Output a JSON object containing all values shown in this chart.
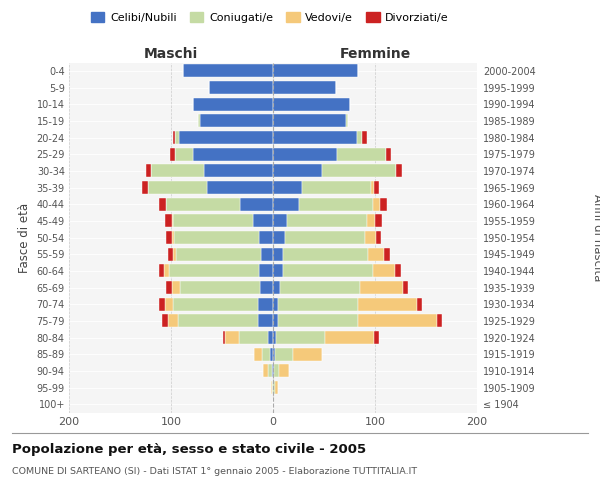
{
  "age_groups": [
    "100+",
    "95-99",
    "90-94",
    "85-89",
    "80-84",
    "75-79",
    "70-74",
    "65-69",
    "60-64",
    "55-59",
    "50-54",
    "45-49",
    "40-44",
    "35-39",
    "30-34",
    "25-29",
    "20-24",
    "15-19",
    "10-14",
    "5-9",
    "0-4"
  ],
  "birth_years": [
    "≤ 1904",
    "1905-1909",
    "1910-1914",
    "1915-1919",
    "1920-1924",
    "1925-1929",
    "1930-1934",
    "1935-1939",
    "1940-1944",
    "1945-1949",
    "1950-1954",
    "1955-1959",
    "1960-1964",
    "1965-1969",
    "1970-1974",
    "1975-1979",
    "1980-1984",
    "1985-1989",
    "1990-1994",
    "1995-1999",
    "2000-2004"
  ],
  "maschi_cel": [
    0,
    0,
    1,
    3,
    5,
    15,
    15,
    13,
    14,
    12,
    14,
    20,
    32,
    65,
    68,
    78,
    92,
    72,
    78,
    63,
    88
  ],
  "maschi_con": [
    0,
    1,
    4,
    8,
    28,
    78,
    83,
    78,
    88,
    83,
    83,
    78,
    73,
    58,
    52,
    18,
    4,
    2,
    0,
    0,
    0
  ],
  "maschi_ved": [
    0,
    1,
    5,
    8,
    14,
    10,
    8,
    8,
    5,
    3,
    2,
    1,
    0,
    0,
    0,
    0,
    0,
    0,
    0,
    0,
    0
  ],
  "maschi_div": [
    0,
    0,
    0,
    0,
    2,
    6,
    6,
    6,
    5,
    5,
    6,
    7,
    7,
    5,
    5,
    5,
    2,
    0,
    0,
    0,
    0
  ],
  "femmine_cel": [
    0,
    0,
    1,
    2,
    3,
    5,
    5,
    7,
    10,
    10,
    12,
    14,
    25,
    28,
    48,
    63,
    82,
    72,
    75,
    62,
    83
  ],
  "femmine_con": [
    0,
    2,
    5,
    18,
    48,
    78,
    78,
    78,
    88,
    83,
    78,
    78,
    73,
    68,
    73,
    48,
    5,
    2,
    0,
    0,
    0
  ],
  "femmine_ved": [
    0,
    3,
    10,
    28,
    48,
    78,
    58,
    42,
    22,
    16,
    11,
    8,
    7,
    3,
    0,
    0,
    0,
    0,
    0,
    0,
    0
  ],
  "femmine_div": [
    0,
    0,
    0,
    0,
    5,
    5,
    5,
    5,
    5,
    6,
    5,
    7,
    7,
    5,
    5,
    5,
    5,
    0,
    0,
    0,
    0
  ],
  "colors": {
    "celibi": "#4472c4",
    "coniugati": "#c5dba4",
    "vedovi": "#f5c97a",
    "divorziati": "#cc2222"
  },
  "title": "Popolazione per età, sesso e stato civile - 2005",
  "subtitle": "COMUNE DI SARTEANO (SI) - Dati ISTAT 1° gennaio 2005 - Elaborazione TUTTITALIA.IT",
  "ylabel_left": "Fasce di età",
  "ylabel_right": "Anni di nascita",
  "xlabel_left": "Maschi",
  "xlabel_right": "Femmine",
  "legend_labels": [
    "Celibi/Nubili",
    "Coniugati/e",
    "Vedovi/e",
    "Divorziati/e"
  ],
  "bg_color": "#f5f5f5"
}
